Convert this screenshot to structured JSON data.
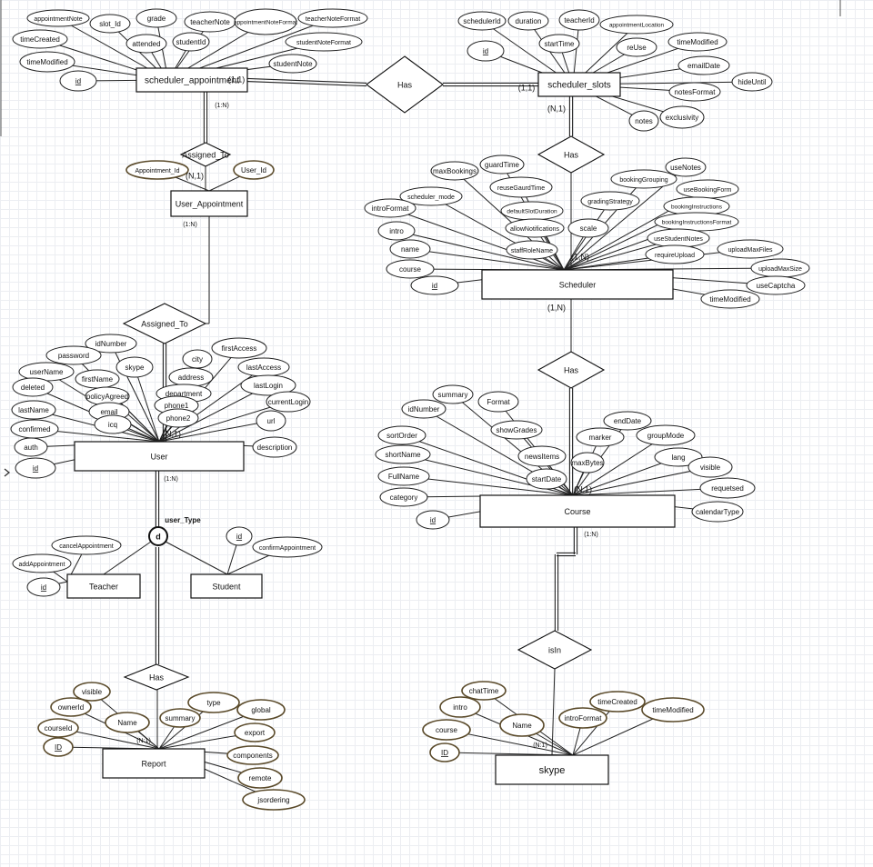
{
  "entities": [
    {
      "key": "sa",
      "label": "scheduler_appointment"
    },
    {
      "key": "ss",
      "label": "scheduler_slots"
    },
    {
      "key": "ua",
      "label": "User_Appointment"
    },
    {
      "key": "sch",
      "label": "Scheduler"
    },
    {
      "key": "user",
      "label": "User"
    },
    {
      "key": "course",
      "label": "Course"
    },
    {
      "key": "teacher",
      "label": "Teacher"
    },
    {
      "key": "student",
      "label": "Student"
    },
    {
      "key": "report",
      "label": "Report"
    },
    {
      "key": "skype",
      "label": "skype"
    }
  ],
  "relationships": [
    {
      "key": "r1",
      "label": "Has"
    },
    {
      "key": "r2",
      "label": "Assigned_To"
    },
    {
      "key": "r3",
      "label": "Has"
    },
    {
      "key": "r4",
      "label": "Assigned_To"
    },
    {
      "key": "r5",
      "label": "Has"
    },
    {
      "key": "r6",
      "label": "Has"
    },
    {
      "key": "r7",
      "label": "isIn"
    }
  ],
  "specialization": {
    "symbol": "d",
    "label": "user_Type"
  },
  "attributes": {
    "sa": [
      "appointmentNote",
      "slot_Id",
      "grade",
      "teacherNote",
      "appointmentNoteFormat",
      "teacherNoteFormat",
      "timeCreated",
      "attended",
      "studentId",
      "studentNoteFormat",
      "timeModified",
      "studentNote",
      "id"
    ],
    "ss": [
      "schedulerId",
      "duration",
      "teacherId",
      "appointmentLocation",
      "id",
      "startTime",
      "reUse",
      "timeModified",
      "emailDate",
      "hideUntil",
      "notesFormat",
      "exclusivity",
      "notes"
    ],
    "ua": [
      "Appointment_Id",
      "User_Id"
    ],
    "sch": [
      "maxBookings",
      "guardTime",
      "reuseGaurdTime",
      "scheduler_mode",
      "introFormat",
      "defaultSlotDuration",
      "allowNotifications",
      "intro",
      "staffRoleName",
      "name",
      "course",
      "id",
      "gradingStrategy",
      "useNotes",
      "bookingGrouping",
      "useBookingForm",
      "bookingInstructions",
      "bookingInstructionsFormat",
      "useStudentNotes",
      "scale",
      "requireUpload",
      "uploadMaxFiles",
      "uploadMaxSize",
      "useCaptcha",
      "timeModified"
    ],
    "user": [
      "idNumber",
      "password",
      "skype",
      "userName",
      "deleted",
      "firstName",
      "lastName",
      "policyAgreed",
      "email",
      "icq",
      "confirmed",
      "auth",
      "id",
      "city",
      "firstAccess",
      "address",
      "lastAccess",
      "department",
      "lastLogin",
      "phone1",
      "currentLogin",
      "phone2",
      "url",
      "description"
    ],
    "course": [
      "summary",
      "idNumber",
      "Format",
      "showGrades",
      "sortOrder",
      "shortName",
      "newsItems",
      "FullName",
      "startDate",
      "category",
      "id",
      "endDate",
      "marker",
      "groupMode",
      "lang",
      "maxBytes",
      "visible",
      "requetsed",
      "calendarType"
    ],
    "teacher": [
      "cancelAppointment",
      "addAppointment",
      "id"
    ],
    "student": [
      "id",
      "confirmAppointment"
    ],
    "report": [
      "visible",
      "ownerId",
      "courseId",
      "Name",
      "ID",
      "type",
      "summary",
      "global",
      "export",
      "components",
      "remote",
      "jsordering"
    ],
    "skype": [
      "chatTime",
      "intro",
      "course",
      "Name",
      "ID",
      "timeCreated",
      "introFormat",
      "timeModified"
    ]
  },
  "cardinalities": {
    "sa_r1": "(1,1)",
    "ss_r1": "(1,1)",
    "sa_r2": "(1:N)",
    "r2_ua": "(N,1)",
    "ua_r4": "(1:N)",
    "r4_user": "(N,1)",
    "ss_r3": "(N,1)",
    "r3_sch": "(1,N)",
    "sch_r5": "(1,N)",
    "r5_course": "(N,1)",
    "user_down": "(1:N)",
    "report_rel": "(N:1)",
    "course_down": "(1:N)",
    "skype_rel": "(N:1)"
  }
}
